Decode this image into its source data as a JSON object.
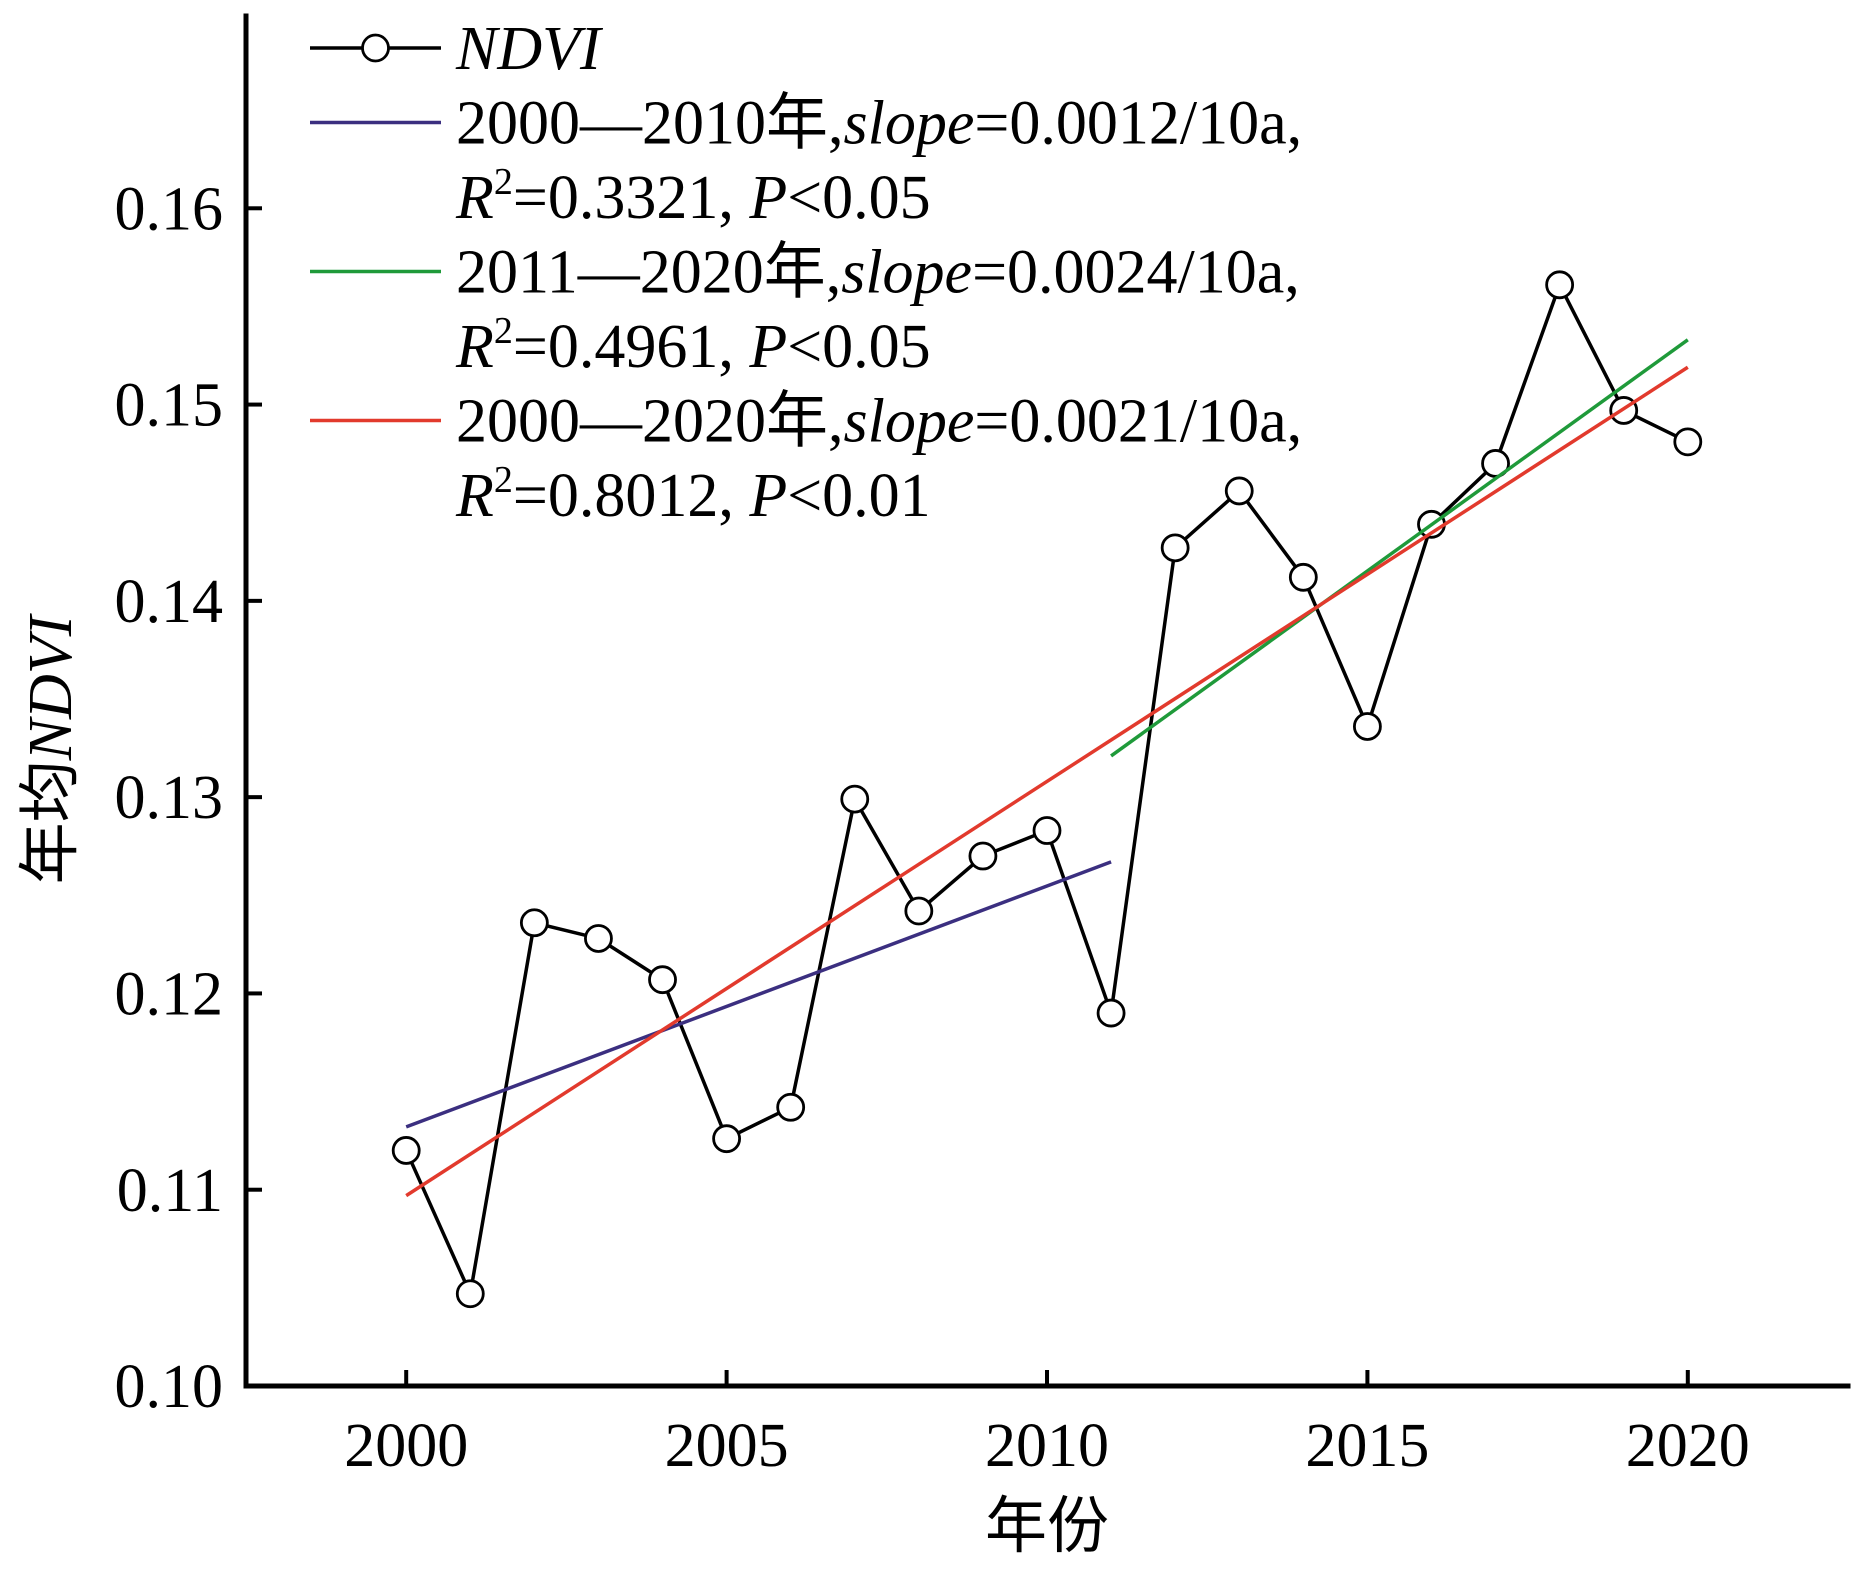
{
  "chart_data": {
    "type": "line",
    "x": [
      2000,
      2001,
      2002,
      2003,
      2004,
      2005,
      2006,
      2007,
      2008,
      2009,
      2010,
      2011,
      2012,
      2013,
      2014,
      2015,
      2016,
      2017,
      2018,
      2019,
      2020
    ],
    "xlabel": "年份",
    "ylabel": [
      {
        "text": "年均"
      },
      {
        "text": "NDVI",
        "italic": true
      }
    ],
    "xlim": [
      1997.5,
      2022.5
    ],
    "ylim": [
      0.1,
      0.17
    ],
    "xticks": [
      "2000",
      "2005",
      "2010",
      "2015",
      "2020"
    ],
    "yticks": [
      "0.10",
      "0.11",
      "0.12",
      "0.13",
      "0.14",
      "0.15",
      "0.16"
    ],
    "grid": false,
    "legend_position": "top-left",
    "series": [
      {
        "type": "line",
        "marker": "circle",
        "color": "#000000",
        "values": [
          0.112,
          0.1047,
          0.1236,
          0.1228,
          0.1207,
          0.1126,
          0.1142,
          0.1299,
          0.1242,
          0.127,
          0.1283,
          0.119,
          0.1427,
          0.1456,
          0.1412,
          0.1336,
          0.1439,
          0.147,
          0.1561,
          0.1497,
          0.1481
        ],
        "legend": [
          [
            {
              "text": "NDVI",
              "italic": true
            }
          ]
        ]
      },
      {
        "type": "trend",
        "color": "#3b2f80",
        "x": [
          2000,
          2011
        ],
        "values": [
          0.1132,
          0.1267
        ],
        "legend": [
          [
            {
              "text": "2000—2010年,"
            },
            {
              "text": "slope",
              "italic": true
            },
            {
              "text": "=0.0012/10a,"
            }
          ],
          [
            {
              "text": "R",
              "italic": true
            },
            {
              "text": "2",
              "sup": true
            },
            {
              "text": "=0.3321, "
            },
            {
              "text": "P",
              "italic": true
            },
            {
              "text": "<0.05"
            }
          ]
        ]
      },
      {
        "type": "trend",
        "color": "#1f9a3a",
        "x": [
          2011,
          2020
        ],
        "values": [
          0.1321,
          0.1533
        ],
        "legend": [
          [
            {
              "text": "2011—2020年,"
            },
            {
              "text": "slope",
              "italic": true
            },
            {
              "text": "=0.0024/10a,"
            }
          ],
          [
            {
              "text": "R",
              "italic": true
            },
            {
              "text": "2",
              "sup": true
            },
            {
              "text": "=0.4961, "
            },
            {
              "text": "P",
              "italic": true
            },
            {
              "text": "<0.05"
            }
          ]
        ]
      },
      {
        "type": "trend",
        "color": "#e23a2d",
        "x": [
          2000,
          2020
        ],
        "values": [
          0.1097,
          0.1519
        ],
        "legend": [
          [
            {
              "text": "2000—2020年,"
            },
            {
              "text": "slope",
              "italic": true
            },
            {
              "text": "=0.0021/10a,"
            }
          ],
          [
            {
              "text": "R",
              "italic": true
            },
            {
              "text": "2",
              "sup": true
            },
            {
              "text": "=0.8012, "
            },
            {
              "text": "P",
              "italic": true
            },
            {
              "text": "<0.01"
            }
          ]
        ]
      }
    ]
  }
}
